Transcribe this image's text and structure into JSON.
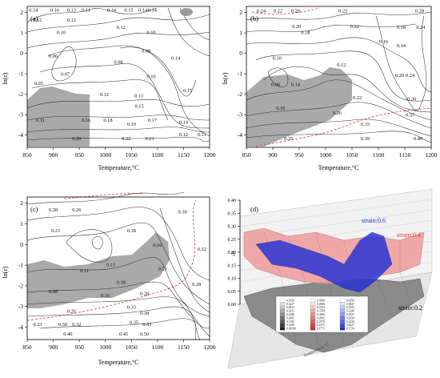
{
  "chart_data": [
    {
      "type": "contour",
      "panel_label": "(a)",
      "xlabel": "Temperature,°C",
      "ylabel": "ln(ε̇)",
      "xlim": [
        850,
        1200
      ],
      "ylim": [
        -4.6,
        2.3
      ],
      "xticks": [
        "850",
        "900",
        "950",
        "1000",
        "1050",
        "1100",
        "1150",
        "1200"
      ],
      "yticks": [
        "-4",
        "-3",
        "-2",
        "-1",
        "0",
        "1",
        "2"
      ],
      "contour_labels": [
        {
          "text": "0.14",
          "x": 862,
          "y": 2.05
        },
        {
          "text": "0.16",
          "x": 903,
          "y": 2.05
        },
        {
          "text": "0.13",
          "x": 935,
          "y": 2.05
        },
        {
          "text": "0.11",
          "x": 963,
          "y": 2.05
        },
        {
          "text": "0.14",
          "x": 1012,
          "y": 2.05
        },
        {
          "text": "0.15",
          "x": 1045,
          "y": 2.05
        },
        {
          "text": "0.14",
          "x": 1072,
          "y": 2.05
        },
        {
          "text": "0.14",
          "x": 1090,
          "y": 2.05
        },
        {
          "text": "0.11",
          "x": 870,
          "y": 1.55
        },
        {
          "text": "0.12",
          "x": 935,
          "y": 1.55
        },
        {
          "text": "0.12",
          "x": 1030,
          "y": 1.2
        },
        {
          "text": "0.10",
          "x": 915,
          "y": 0.95
        },
        {
          "text": "0.10",
          "x": 1088,
          "y": 0.95
        },
        {
          "text": "0.09",
          "x": 1078,
          "y": 0.05
        },
        {
          "text": "0.06",
          "x": 900,
          "y": -0.2
        },
        {
          "text": "0.08",
          "x": 1025,
          "y": -0.5
        },
        {
          "text": "0.14",
          "x": 1135,
          "y": -0.3
        },
        {
          "text": "0.07",
          "x": 923,
          "y": -1.1
        },
        {
          "text": "0.10",
          "x": 1088,
          "y": -1.2
        },
        {
          "text": "0.05",
          "x": 872,
          "y": -1.55
        },
        {
          "text": "0.12",
          "x": 998,
          "y": -2.1
        },
        {
          "text": "0.13",
          "x": 1064,
          "y": -2.15
        },
        {
          "text": "0.15",
          "x": 1158,
          "y": -1.9
        },
        {
          "text": "0.15",
          "x": 1065,
          "y": -2.65
        },
        {
          "text": "0.11",
          "x": 875,
          "y": -3.35
        },
        {
          "text": "0.16",
          "x": 963,
          "y": -3.35
        },
        {
          "text": "0.18",
          "x": 1005,
          "y": -3.35
        },
        {
          "text": "0.17",
          "x": 1090,
          "y": -3.35
        },
        {
          "text": "0.19",
          "x": 1050,
          "y": -3.55
        },
        {
          "text": "0.14",
          "x": 1150,
          "y": -3.45
        },
        {
          "text": "0.12",
          "x": 1150,
          "y": -4.05
        },
        {
          "text": "0.11",
          "x": 1185,
          "y": -4.05
        },
        {
          "text": "0.20",
          "x": 945,
          "y": -4.25
        },
        {
          "text": "0.22",
          "x": 1040,
          "y": -4.25
        },
        {
          "text": "0.21",
          "x": 1085,
          "y": -4.25
        }
      ]
    },
    {
      "type": "contour",
      "panel_label": "(b)",
      "xlabel": "Temperature,°C",
      "ylabel": "ln(ε̇)",
      "xlim": [
        850,
        1200
      ],
      "ylim": [
        -4.6,
        2.3
      ],
      "xticks": [
        "850",
        "900",
        "950",
        "1000",
        "1050",
        "1100",
        "1150",
        "1200"
      ],
      "yticks": [
        "-4",
        "-3",
        "-2",
        "-1",
        "0",
        "1",
        "2"
      ],
      "contour_labels": [
        {
          "text": "0.24",
          "x": 878,
          "y": 2.0
        },
        {
          "text": "0.22",
          "x": 910,
          "y": 2.0
        },
        {
          "text": "0.20",
          "x": 943,
          "y": 2.0
        },
        {
          "text": "0.22",
          "x": 1033,
          "y": 2.0
        },
        {
          "text": "0.28",
          "x": 1178,
          "y": 2.0
        },
        {
          "text": "0.20",
          "x": 945,
          "y": 1.25
        },
        {
          "text": "0.18",
          "x": 962,
          "y": 0.95
        },
        {
          "text": "0.22",
          "x": 1055,
          "y": 1.25
        },
        {
          "text": "0.18",
          "x": 1143,
          "y": 1.2
        },
        {
          "text": "0.24",
          "x": 1180,
          "y": 1.2
        },
        {
          "text": "0.16",
          "x": 1110,
          "y": 0.5
        },
        {
          "text": "0.14",
          "x": 1143,
          "y": 0.3
        },
        {
          "text": "0.10",
          "x": 908,
          "y": -0.3
        },
        {
          "text": "0.12",
          "x": 1030,
          "y": -0.65
        },
        {
          "text": "0.20",
          "x": 1140,
          "y": -1.15
        },
        {
          "text": "0.24",
          "x": 1160,
          "y": -1.15
        },
        {
          "text": "0.08",
          "x": 905,
          "y": -1.6
        },
        {
          "text": "0.14",
          "x": 943,
          "y": -1.6
        },
        {
          "text": "0.16",
          "x": 915,
          "y": -2.75
        },
        {
          "text": "0.22",
          "x": 1060,
          "y": -2.25
        },
        {
          "text": "0.26",
          "x": 1022,
          "y": -3.0
        },
        {
          "text": "0.37",
          "x": 1160,
          "y": -3.1
        },
        {
          "text": "0.30",
          "x": 1163,
          "y": -2.3
        },
        {
          "text": "0.33",
          "x": 1075,
          "y": -3.55
        },
        {
          "text": "0.35",
          "x": 930,
          "y": -4.25
        },
        {
          "text": "0.39",
          "x": 1075,
          "y": -4.25
        },
        {
          "text": "0.40",
          "x": 1175,
          "y": -4.25
        }
      ]
    },
    {
      "type": "contour",
      "panel_label": "(c)",
      "xlabel": "Temperature,°C",
      "ylabel": "ln(ε̇)",
      "xlim": [
        850,
        1200
      ],
      "ylim": [
        -4.6,
        2.3
      ],
      "xticks": [
        "850",
        "900",
        "950",
        "1000",
        "1050",
        "1100",
        "1150",
        "1200"
      ],
      "yticks": [
        "-4",
        "-3",
        "-2",
        "-1",
        "0",
        "1",
        "2"
      ],
      "contour_labels": [
        {
          "text": "0.28",
          "x": 900,
          "y": 1.6
        },
        {
          "text": "0.26",
          "x": 945,
          "y": 1.6
        },
        {
          "text": "0.30",
          "x": 1148,
          "y": 1.5
        },
        {
          "text": "0.18",
          "x": 1050,
          "y": 0.6
        },
        {
          "text": "0.21",
          "x": 905,
          "y": 0.6
        },
        {
          "text": "0.16",
          "x": 1100,
          "y": -0.1
        },
        {
          "text": "0.32",
          "x": 1185,
          "y": -0.3
        },
        {
          "text": "0.11",
          "x": 960,
          "y": -1.35
        },
        {
          "text": "0.13",
          "x": 1010,
          "y": -1.05
        },
        {
          "text": "0.21",
          "x": 1110,
          "y": -1.25
        },
        {
          "text": "0.18",
          "x": 1030,
          "y": -1.9
        },
        {
          "text": "0.08",
          "x": 900,
          "y": -2.35
        },
        {
          "text": "0.16",
          "x": 1000,
          "y": -2.55
        },
        {
          "text": "0.28",
          "x": 1175,
          "y": -2.0
        },
        {
          "text": "0.28",
          "x": 1075,
          "y": -2.45
        },
        {
          "text": "0.26",
          "x": 935,
          "y": -3.3
        },
        {
          "text": "0.33",
          "x": 1050,
          "y": -3.1
        },
        {
          "text": "0.38",
          "x": 1075,
          "y": -3.4
        },
        {
          "text": "0.30",
          "x": 918,
          "y": -3.95
        },
        {
          "text": "0.32",
          "x": 945,
          "y": -3.95
        },
        {
          "text": "0.23",
          "x": 870,
          "y": -3.95
        },
        {
          "text": "0.35",
          "x": 1055,
          "y": -3.85
        },
        {
          "text": "0.43",
          "x": 1080,
          "y": -3.95
        },
        {
          "text": "0.40",
          "x": 928,
          "y": -4.4
        },
        {
          "text": "0.45",
          "x": 1035,
          "y": -4.4
        },
        {
          "text": "0.50",
          "x": 1075,
          "y": -4.4
        }
      ]
    },
    {
      "type": "surface3d",
      "panel_label": "(d)",
      "zlabel": "η",
      "zticks": [
        "0.00",
        "0.05",
        "0.10",
        "0.15",
        "0.20",
        "0.25",
        "0.30",
        "0.35",
        "0.40"
      ],
      "xlabel": "Temperature,°C",
      "series": [
        {
          "name": "strain:0.6",
          "color": "#1f2fd6"
        },
        {
          "name": "strain:0.4",
          "color": "#f08080"
        },
        {
          "name": "strain:0.2",
          "color": "#808080"
        }
      ],
      "legend_values": [
        [
          "0.3520",
          "0.3217",
          "0.2914",
          "0.2611",
          "0.2308",
          "0.2005",
          "0.1702",
          "0.1399",
          "0.09280"
        ],
        [
          "0.5000",
          "0.4596",
          "0.4193",
          "0.3789",
          "0.3386",
          "0.2982",
          "0.2578",
          "0.2175",
          "0.1771"
        ],
        [
          "0.4150",
          "0.3847",
          "0.3543",
          "0.3240",
          "0.2937",
          "0.2634",
          "0.2330",
          "0.2027",
          "0.1724"
        ]
      ]
    }
  ]
}
